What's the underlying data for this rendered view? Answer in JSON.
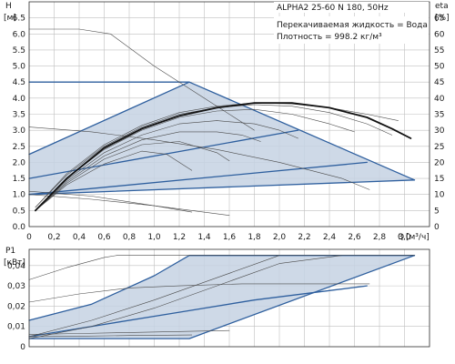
{
  "chart_data": [
    {
      "type": "line",
      "title": "ALPHA2 25-60 N 180, 50Hz",
      "annotations": [
        "Перекачиваемая жидкость = Вода",
        "Плотность = 998.2 кг/м³"
      ],
      "xlabel": "Q",
      "xunit": "[м³/ч]",
      "ylabel": "H",
      "yunit": "[м]",
      "y2label": "eta",
      "y2unit": "[%]",
      "xlim": [
        0,
        3.2
      ],
      "ylim": [
        0,
        7.0
      ],
      "y2lim": [
        0,
        70
      ],
      "xticks": [
        "0",
        "0,2",
        "0,4",
        "0,6",
        "0,8",
        "1,0",
        "1,2",
        "1,4",
        "1,6",
        "1,8",
        "2,0",
        "2,2",
        "2,4",
        "2,6",
        "2,8",
        "3,0"
      ],
      "yticks": [
        "0.0",
        "0.5",
        "1.0",
        "1.5",
        "2.0",
        "2.5",
        "3.0",
        "3.5",
        "4.0",
        "4.5",
        "5.0",
        "5.5",
        "6.0",
        "6.5"
      ],
      "y2ticks": [
        "0",
        "5",
        "10",
        "15",
        "20",
        "25",
        "30",
        "35",
        "40",
        "45",
        "50",
        "55",
        "60",
        "65"
      ],
      "grid": true,
      "accent_color": "#2e5f9e",
      "fill_color": "#c6d2e3",
      "series": [
        {
          "style": "thick-outline",
          "x": [
            0,
            1.28,
            3.08
          ],
          "y": [
            4.5,
            4.5,
            1.45
          ]
        },
        {
          "style": "thick-outline",
          "x": [
            0,
            3.08
          ],
          "y": [
            1.0,
            1.45
          ]
        },
        {
          "style": "thick-outline",
          "x": [
            0,
            1.28
          ],
          "y": [
            2.25,
            4.5
          ]
        },
        {
          "style": "thick-outline",
          "x": [
            0,
            2.7
          ],
          "y": [
            1.0,
            2.0
          ]
        },
        {
          "style": "thick-outline",
          "x": [
            0,
            2.15
          ],
          "y": [
            1.5,
            3.0
          ]
        },
        {
          "style": "thin",
          "x": [
            0,
            0.4,
            0.65,
            1.0,
            1.4,
            1.8
          ],
          "y": [
            6.15,
            6.15,
            6.0,
            5.0,
            4.0,
            3.0
          ]
        },
        {
          "style": "thin",
          "x": [
            0,
            0.5,
            1.0,
            1.5,
            2.0,
            2.5,
            2.72
          ],
          "y": [
            3.1,
            2.95,
            2.7,
            2.4,
            2.0,
            1.5,
            1.15
          ]
        },
        {
          "style": "thin",
          "x": [
            0,
            0.5,
            1.0,
            1.3
          ],
          "y": [
            1.1,
            0.95,
            0.65,
            0.45
          ]
        },
        {
          "style": "thin",
          "x": [
            0,
            0.5,
            1.0,
            1.6
          ],
          "y": [
            1.0,
            0.85,
            0.65,
            0.35
          ]
        },
        {
          "style": "thin",
          "x": [
            0.05,
            0.3,
            0.6,
            0.9,
            1.1,
            1.3
          ],
          "y": [
            0.5,
            1.3,
            1.95,
            2.35,
            2.25,
            1.75
          ]
        },
        {
          "style": "thin",
          "x": [
            0.05,
            0.3,
            0.6,
            0.9,
            1.2,
            1.5,
            1.6
          ],
          "y": [
            0.5,
            1.35,
            2.1,
            2.55,
            2.65,
            2.3,
            2.05
          ]
        },
        {
          "style": "thin",
          "x": [
            0.05,
            0.3,
            0.6,
            0.9,
            1.2,
            1.5,
            1.7,
            1.85
          ],
          "y": [
            0.5,
            1.4,
            2.2,
            2.7,
            2.95,
            2.95,
            2.85,
            2.65
          ]
        },
        {
          "style": "thin",
          "x": [
            0.05,
            0.3,
            0.6,
            0.9,
            1.2,
            1.5,
            1.8,
            2.0,
            2.15
          ],
          "y": [
            0.5,
            1.45,
            2.3,
            2.85,
            3.2,
            3.3,
            3.2,
            3.0,
            2.75
          ]
        },
        {
          "style": "thin",
          "x": [
            0.05,
            0.3,
            0.6,
            0.9,
            1.2,
            1.5,
            1.8,
            2.1,
            2.4,
            2.6
          ],
          "y": [
            0.5,
            1.5,
            2.4,
            3.0,
            3.4,
            3.6,
            3.65,
            3.5,
            3.2,
            2.95
          ]
        },
        {
          "style": "thin",
          "x": [
            0.05,
            0.3,
            0.6,
            0.9,
            1.2,
            1.5,
            1.8,
            2.1,
            2.4,
            2.7,
            2.9
          ],
          "y": [
            0.6,
            1.6,
            2.5,
            3.1,
            3.5,
            3.7,
            3.8,
            3.75,
            3.55,
            3.2,
            2.85
          ]
        },
        {
          "style": "thin",
          "x": [
            0.05,
            0.3,
            0.6,
            0.9,
            1.2,
            1.5,
            1.8,
            2.1,
            2.4,
            2.7,
            2.95
          ],
          "y": [
            0.6,
            1.65,
            2.55,
            3.15,
            3.55,
            3.75,
            3.85,
            3.82,
            3.7,
            3.5,
            3.3
          ]
        },
        {
          "style": "thick",
          "x": [
            0.05,
            0.3,
            0.6,
            0.9,
            1.2,
            1.5,
            1.8,
            2.1,
            2.4,
            2.7,
            2.9,
            3.05
          ],
          "y": [
            0.5,
            1.5,
            2.45,
            3.05,
            3.45,
            3.7,
            3.85,
            3.85,
            3.7,
            3.4,
            3.05,
            2.75
          ]
        }
      ]
    },
    {
      "type": "line",
      "ylabel": "P1",
      "yunit": "[кВт]",
      "xlim": [
        0,
        3.2
      ],
      "ylim": [
        0,
        0.048
      ],
      "yticks": [
        "0",
        "0,01",
        "0,02",
        "0,03",
        "0,04"
      ],
      "grid": true,
      "series": [
        {
          "style": "thick-outline",
          "x": [
            0,
            1.28,
            3.08
          ],
          "y": [
            0.004,
            0.004,
            0.045
          ]
        },
        {
          "style": "thick-outline",
          "x": [
            0,
            0.5,
            1.0,
            1.28,
            3.08
          ],
          "y": [
            0.013,
            0.021,
            0.035,
            0.045,
            0.045
          ]
        },
        {
          "style": "thick-outline",
          "x": [
            0,
            0.6,
            1.2,
            1.8,
            2.7
          ],
          "y": [
            0.005,
            0.011,
            0.017,
            0.023,
            0.03
          ]
        },
        {
          "style": "thin",
          "x": [
            0,
            0.3,
            0.6,
            0.7,
            3.08
          ],
          "y": [
            0.033,
            0.039,
            0.044,
            0.045,
            0.045
          ]
        },
        {
          "style": "thin",
          "x": [
            0,
            0.4,
            0.8,
            1.2,
            1.7,
            2.1,
            2.72
          ],
          "y": [
            0.022,
            0.026,
            0.029,
            0.03,
            0.031,
            0.031,
            0.031
          ]
        },
        {
          "style": "thin",
          "x": [
            0,
            0.4,
            0.8,
            1.2,
            1.6
          ],
          "y": [
            0.006,
            0.0065,
            0.007,
            0.0075,
            0.008
          ]
        },
        {
          "style": "thin",
          "x": [
            0,
            0.4,
            0.8,
            1.3
          ],
          "y": [
            0.005,
            0.0052,
            0.0055,
            0.0058
          ]
        },
        {
          "style": "thin",
          "x": [
            0,
            0.5,
            1.0,
            1.5,
            2.0,
            2.5
          ],
          "y": [
            0.004,
            0.01,
            0.019,
            0.03,
            0.041,
            0.045
          ]
        },
        {
          "style": "thin",
          "x": [
            0,
            0.5,
            1.0,
            1.5,
            2.0
          ],
          "y": [
            0.005,
            0.013,
            0.023,
            0.034,
            0.045
          ]
        }
      ]
    }
  ]
}
